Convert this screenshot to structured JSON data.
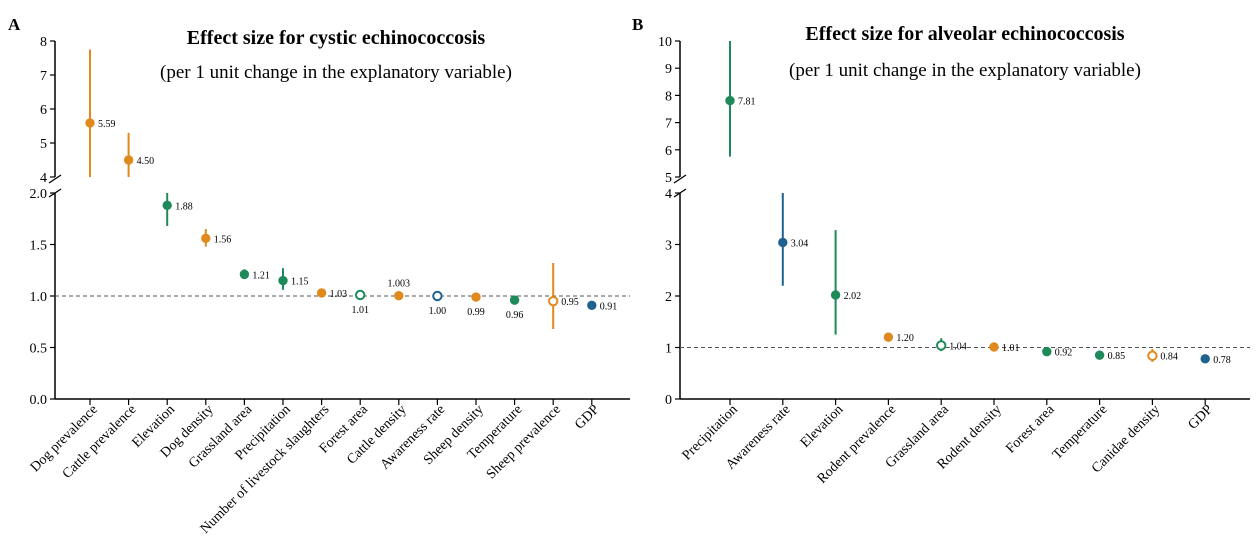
{
  "colors": {
    "orange": "#e08a1e",
    "green": "#1e8a5a",
    "blue": "#1f628f",
    "axis": "#000000",
    "ref_line": "#555555"
  },
  "chart_data": [
    {
      "panel_label": "A",
      "type": "scatter",
      "title": "Effect size for cystic echinococcosis",
      "subtitle": "(per 1 unit change in the explanatory variable)",
      "xlabel": "",
      "ylabel": "",
      "y_axis_break": true,
      "ylim_lower": [
        0,
        2.0
      ],
      "ylim_upper": [
        4,
        8
      ],
      "yticks_lower": [
        "0.0",
        "0.5",
        "1.0",
        "1.5",
        "2.0"
      ],
      "yticks_upper": [
        "4",
        "5",
        "6",
        "7",
        "8"
      ],
      "reference_line": 1.0,
      "points": [
        {
          "category": "Dog prevalence",
          "value": 5.59,
          "low": 4.0,
          "high": 7.75,
          "label": "5.59",
          "color": "orange",
          "filled": true
        },
        {
          "category": "Cattle prevalence",
          "value": 4.5,
          "low": 4.0,
          "high": 5.3,
          "label": "4.50",
          "color": "orange",
          "filled": true
        },
        {
          "category": "Elevation",
          "value": 1.88,
          "low": 1.68,
          "high": 2.0,
          "label": "1.88",
          "color": "green",
          "filled": true
        },
        {
          "category": "Dog density",
          "value": 1.56,
          "low": 1.48,
          "high": 1.65,
          "label": "1.56",
          "color": "orange",
          "filled": true
        },
        {
          "category": "Grassland area",
          "value": 1.21,
          "low": 1.17,
          "high": 1.26,
          "label": "1.21",
          "color": "green",
          "filled": true
        },
        {
          "category": "Precipitation",
          "value": 1.15,
          "low": 1.06,
          "high": 1.27,
          "label": "1.15",
          "color": "green",
          "filled": true
        },
        {
          "category": "Number of livestock slaughters",
          "value": 1.03,
          "low": 1.01,
          "high": 1.04,
          "label": "1.03",
          "color": "orange",
          "filled": true
        },
        {
          "category": "Forest area",
          "value": 1.01,
          "low": 1.0,
          "high": 1.02,
          "label": "1.01",
          "color": "green",
          "filled": false
        },
        {
          "category": "Cattle density",
          "value": 1.003,
          "low": 0.99,
          "high": 1.01,
          "label": "1.003",
          "color": "orange",
          "filled": true
        },
        {
          "category": "Awareness rate",
          "value": 1.0,
          "low": 0.99,
          "high": 1.01,
          "label": "1.00",
          "color": "blue",
          "filled": false
        },
        {
          "category": "Sheep density",
          "value": 0.99,
          "low": 0.98,
          "high": 1.0,
          "label": "0.99",
          "color": "orange",
          "filled": true
        },
        {
          "category": "Temperature",
          "value": 0.96,
          "low": 0.94,
          "high": 0.98,
          "label": "0.96",
          "color": "green",
          "filled": true
        },
        {
          "category": "Sheep prevalence",
          "value": 0.95,
          "low": 0.68,
          "high": 1.32,
          "label": "0.95",
          "color": "orange",
          "filled": false
        },
        {
          "category": "GDP",
          "value": 0.91,
          "low": 0.9,
          "high": 0.92,
          "label": "0.91",
          "color": "blue",
          "filled": true
        }
      ]
    },
    {
      "panel_label": "B",
      "type": "scatter",
      "title": "Effect size for alveolar echinococcosis",
      "subtitle": "(per 1 unit change in the explanatory variable)",
      "xlabel": "",
      "ylabel": "",
      "y_axis_break": true,
      "ylim_lower": [
        0,
        4
      ],
      "ylim_upper": [
        5,
        10
      ],
      "yticks_lower": [
        "0",
        "1",
        "2",
        "3",
        "4"
      ],
      "yticks_upper": [
        "5",
        "6",
        "7",
        "8",
        "9",
        "10"
      ],
      "reference_line": 1,
      "points": [
        {
          "category": "Precipitation",
          "value": 7.81,
          "low": 5.75,
          "high": 10.0,
          "label": "7.81",
          "color": "green",
          "filled": true
        },
        {
          "category": "Awareness rate",
          "value": 3.04,
          "low": 2.2,
          "high": 4.0,
          "label": "3.04",
          "color": "blue",
          "filled": true
        },
        {
          "category": "Elevation",
          "value": 2.02,
          "low": 1.25,
          "high": 3.28,
          "label": "2.02",
          "color": "green",
          "filled": true
        },
        {
          "category": "Rodent prevalence",
          "value": 1.2,
          "low": 1.17,
          "high": 1.23,
          "label": "1.20",
          "color": "orange",
          "filled": true
        },
        {
          "category": "Grassland area",
          "value": 1.04,
          "low": 0.93,
          "high": 1.18,
          "label": "1.04",
          "color": "green",
          "filled": false
        },
        {
          "category": "Rodent density",
          "value": 1.01,
          "low": 1.0,
          "high": 1.02,
          "label": "1.01",
          "color": "orange",
          "filled": true
        },
        {
          "category": "Forest area",
          "value": 0.92,
          "low": 0.9,
          "high": 0.94,
          "label": "0.92",
          "color": "green",
          "filled": true
        },
        {
          "category": "Temperature",
          "value": 0.85,
          "low": 0.83,
          "high": 0.87,
          "label": "0.85",
          "color": "green",
          "filled": true
        },
        {
          "category": "Canidae density",
          "value": 0.84,
          "low": 0.72,
          "high": 0.97,
          "label": "0.84",
          "color": "orange",
          "filled": false
        },
        {
          "category": "GDP",
          "value": 0.78,
          "low": 0.76,
          "high": 0.8,
          "label": "0.78",
          "color": "blue",
          "filled": true
        }
      ]
    }
  ]
}
